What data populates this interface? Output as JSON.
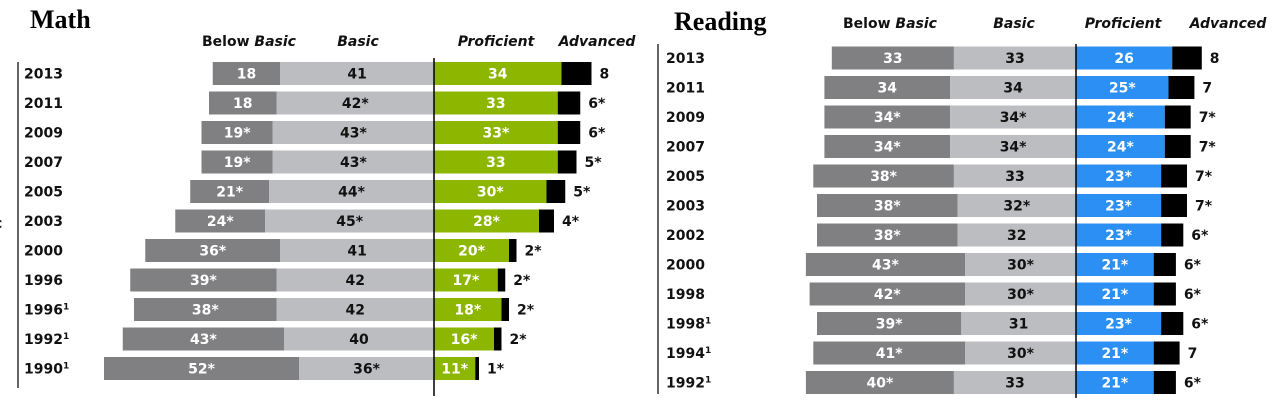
{
  "chart_data": [
    {
      "type": "bar",
      "stacked": true,
      "orientation": "horizontal",
      "title": "Math",
      "categories": [
        "2013",
        "2011",
        "2009",
        "2007",
        "2005",
        "2003",
        "2000",
        "1996",
        "1996¹",
        "1992¹",
        "1990¹"
      ],
      "series": [
        {
          "name": "Below Basic",
          "values": [
            18,
            18,
            19,
            19,
            21,
            24,
            36,
            39,
            38,
            43,
            52
          ],
          "labels": [
            "18",
            "18",
            "19*",
            "19*",
            "21*",
            "24*",
            "36*",
            "39*",
            "38*",
            "43*",
            "52*"
          ],
          "color": "#808083"
        },
        {
          "name": "Basic",
          "values": [
            41,
            42,
            43,
            43,
            44,
            45,
            41,
            42,
            42,
            40,
            36
          ],
          "labels": [
            "41",
            "42*",
            "43*",
            "43*",
            "44*",
            "45*",
            "41",
            "42",
            "42",
            "40",
            "36*"
          ],
          "color": "#bcbdc0"
        },
        {
          "name": "Proficient",
          "values": [
            34,
            33,
            33,
            33,
            30,
            28,
            20,
            17,
            18,
            16,
            11
          ],
          "labels": [
            "34",
            "33",
            "33*",
            "33",
            "30*",
            "28*",
            "20*",
            "17*",
            "18*",
            "16*",
            "11*"
          ],
          "color": "#8db600"
        },
        {
          "name": "Advanced",
          "values": [
            8,
            6,
            6,
            5,
            5,
            4,
            2,
            2,
            2,
            2,
            1
          ],
          "labels": [
            "8",
            "6*",
            "6*",
            "5*",
            "5*",
            "4*",
            "2*",
            "2*",
            "2*",
            "2*",
            "1*"
          ],
          "color": "#000000"
        }
      ]
    },
    {
      "type": "bar",
      "stacked": true,
      "orientation": "horizontal",
      "title": "Reading",
      "categories": [
        "2013",
        "2011",
        "2009",
        "2007",
        "2005",
        "2003",
        "2002",
        "2000",
        "1998",
        "1998¹",
        "1994¹",
        "1992¹"
      ],
      "series": [
        {
          "name": "Below Basic",
          "values": [
            33,
            34,
            34,
            34,
            38,
            38,
            38,
            43,
            42,
            39,
            41,
            40
          ],
          "labels": [
            "33",
            "34",
            "34*",
            "34*",
            "38*",
            "38*",
            "38*",
            "43*",
            "42*",
            "39*",
            "41*",
            "40*"
          ],
          "color": "#808083"
        },
        {
          "name": "Basic",
          "values": [
            33,
            34,
            34,
            34,
            33,
            32,
            32,
            30,
            30,
            31,
            30,
            33
          ],
          "labels": [
            "33",
            "34",
            "34*",
            "34*",
            "33",
            "32*",
            "32",
            "30*",
            "30*",
            "31",
            "30*",
            "33"
          ],
          "color": "#bcbdc0"
        },
        {
          "name": "Proficient",
          "values": [
            26,
            25,
            24,
            24,
            23,
            23,
            23,
            21,
            21,
            23,
            21,
            21
          ],
          "labels": [
            "26",
            "25*",
            "24*",
            "24*",
            "23*",
            "23*",
            "23*",
            "21*",
            "21*",
            "23*",
            "21*",
            "21*"
          ],
          "color": "#2b8ff3"
        },
        {
          "name": "Advanced",
          "values": [
            8,
            7,
            7,
            7,
            7,
            7,
            6,
            6,
            6,
            6,
            7,
            6
          ],
          "labels": [
            "8",
            "7",
            "7*",
            "7*",
            "7*",
            "7*",
            "6*",
            "6*",
            "6*",
            "6*",
            "7",
            "6*"
          ],
          "color": "#000000"
        }
      ]
    }
  ],
  "stray_label": "c"
}
